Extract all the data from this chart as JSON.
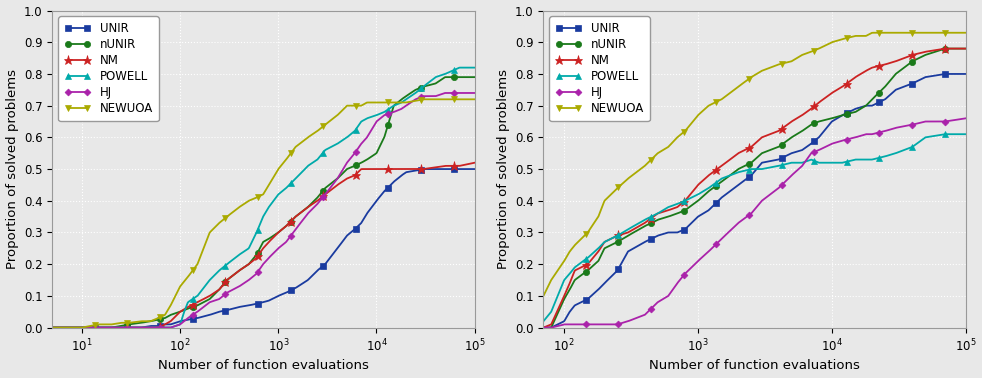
{
  "ylabel": "Proportion of solved problems",
  "xlabel": "Number of function evaluations",
  "xlim_left": [
    5,
    100000
  ],
  "xlim_right": [
    70,
    100000
  ],
  "ylim": [
    0.0,
    1.0
  ],
  "yticks": [
    0.0,
    0.1,
    0.2,
    0.3,
    0.4,
    0.5,
    0.6,
    0.7,
    0.8,
    0.9,
    1.0
  ],
  "series": [
    {
      "label": "UNIR",
      "color": "#1a3b9f",
      "marker": "s",
      "markersize": 4.5
    },
    {
      "label": "nUNIR",
      "color": "#1a7a1a",
      "marker": "o",
      "markersize": 4.5
    },
    {
      "label": "NM",
      "color": "#cc2222",
      "marker": "*",
      "markersize": 6.5
    },
    {
      "label": "POWELL",
      "color": "#00aaaa",
      "marker": "^",
      "markersize": 4.5
    },
    {
      "label": "HJ",
      "color": "#aa22aa",
      "marker": "D",
      "markersize": 3.5
    },
    {
      "label": "NEWUOA",
      "color": "#aaaa00",
      "marker": "v",
      "markersize": 4.5
    }
  ],
  "background_color": "#e8e8e8",
  "grid_color": "#ffffff",
  "linewidth": 1.3,
  "legend_fontsize": 8.5,
  "tick_fontsize": 8.5,
  "label_fontsize": 9.5
}
